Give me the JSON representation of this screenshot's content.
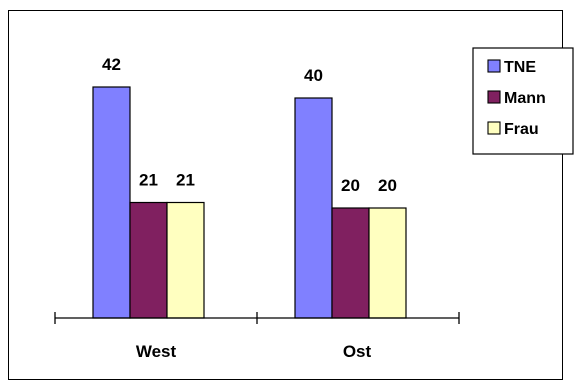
{
  "chart_data": {
    "type": "bar",
    "categories": [
      "West",
      "Ost"
    ],
    "series": [
      {
        "name": "TNE",
        "values": [
          42,
          40
        ],
        "color": "#8080ff"
      },
      {
        "name": "Mann",
        "values": [
          21,
          20
        ],
        "color": "#802060"
      },
      {
        "name": "Frau",
        "values": [
          21,
          20
        ],
        "color": "#ffffc0"
      }
    ],
    "title": "",
    "xlabel": "",
    "ylabel": "",
    "ylim": [
      0,
      42
    ],
    "grid": false,
    "legend": "top-right",
    "data_labels": true
  }
}
